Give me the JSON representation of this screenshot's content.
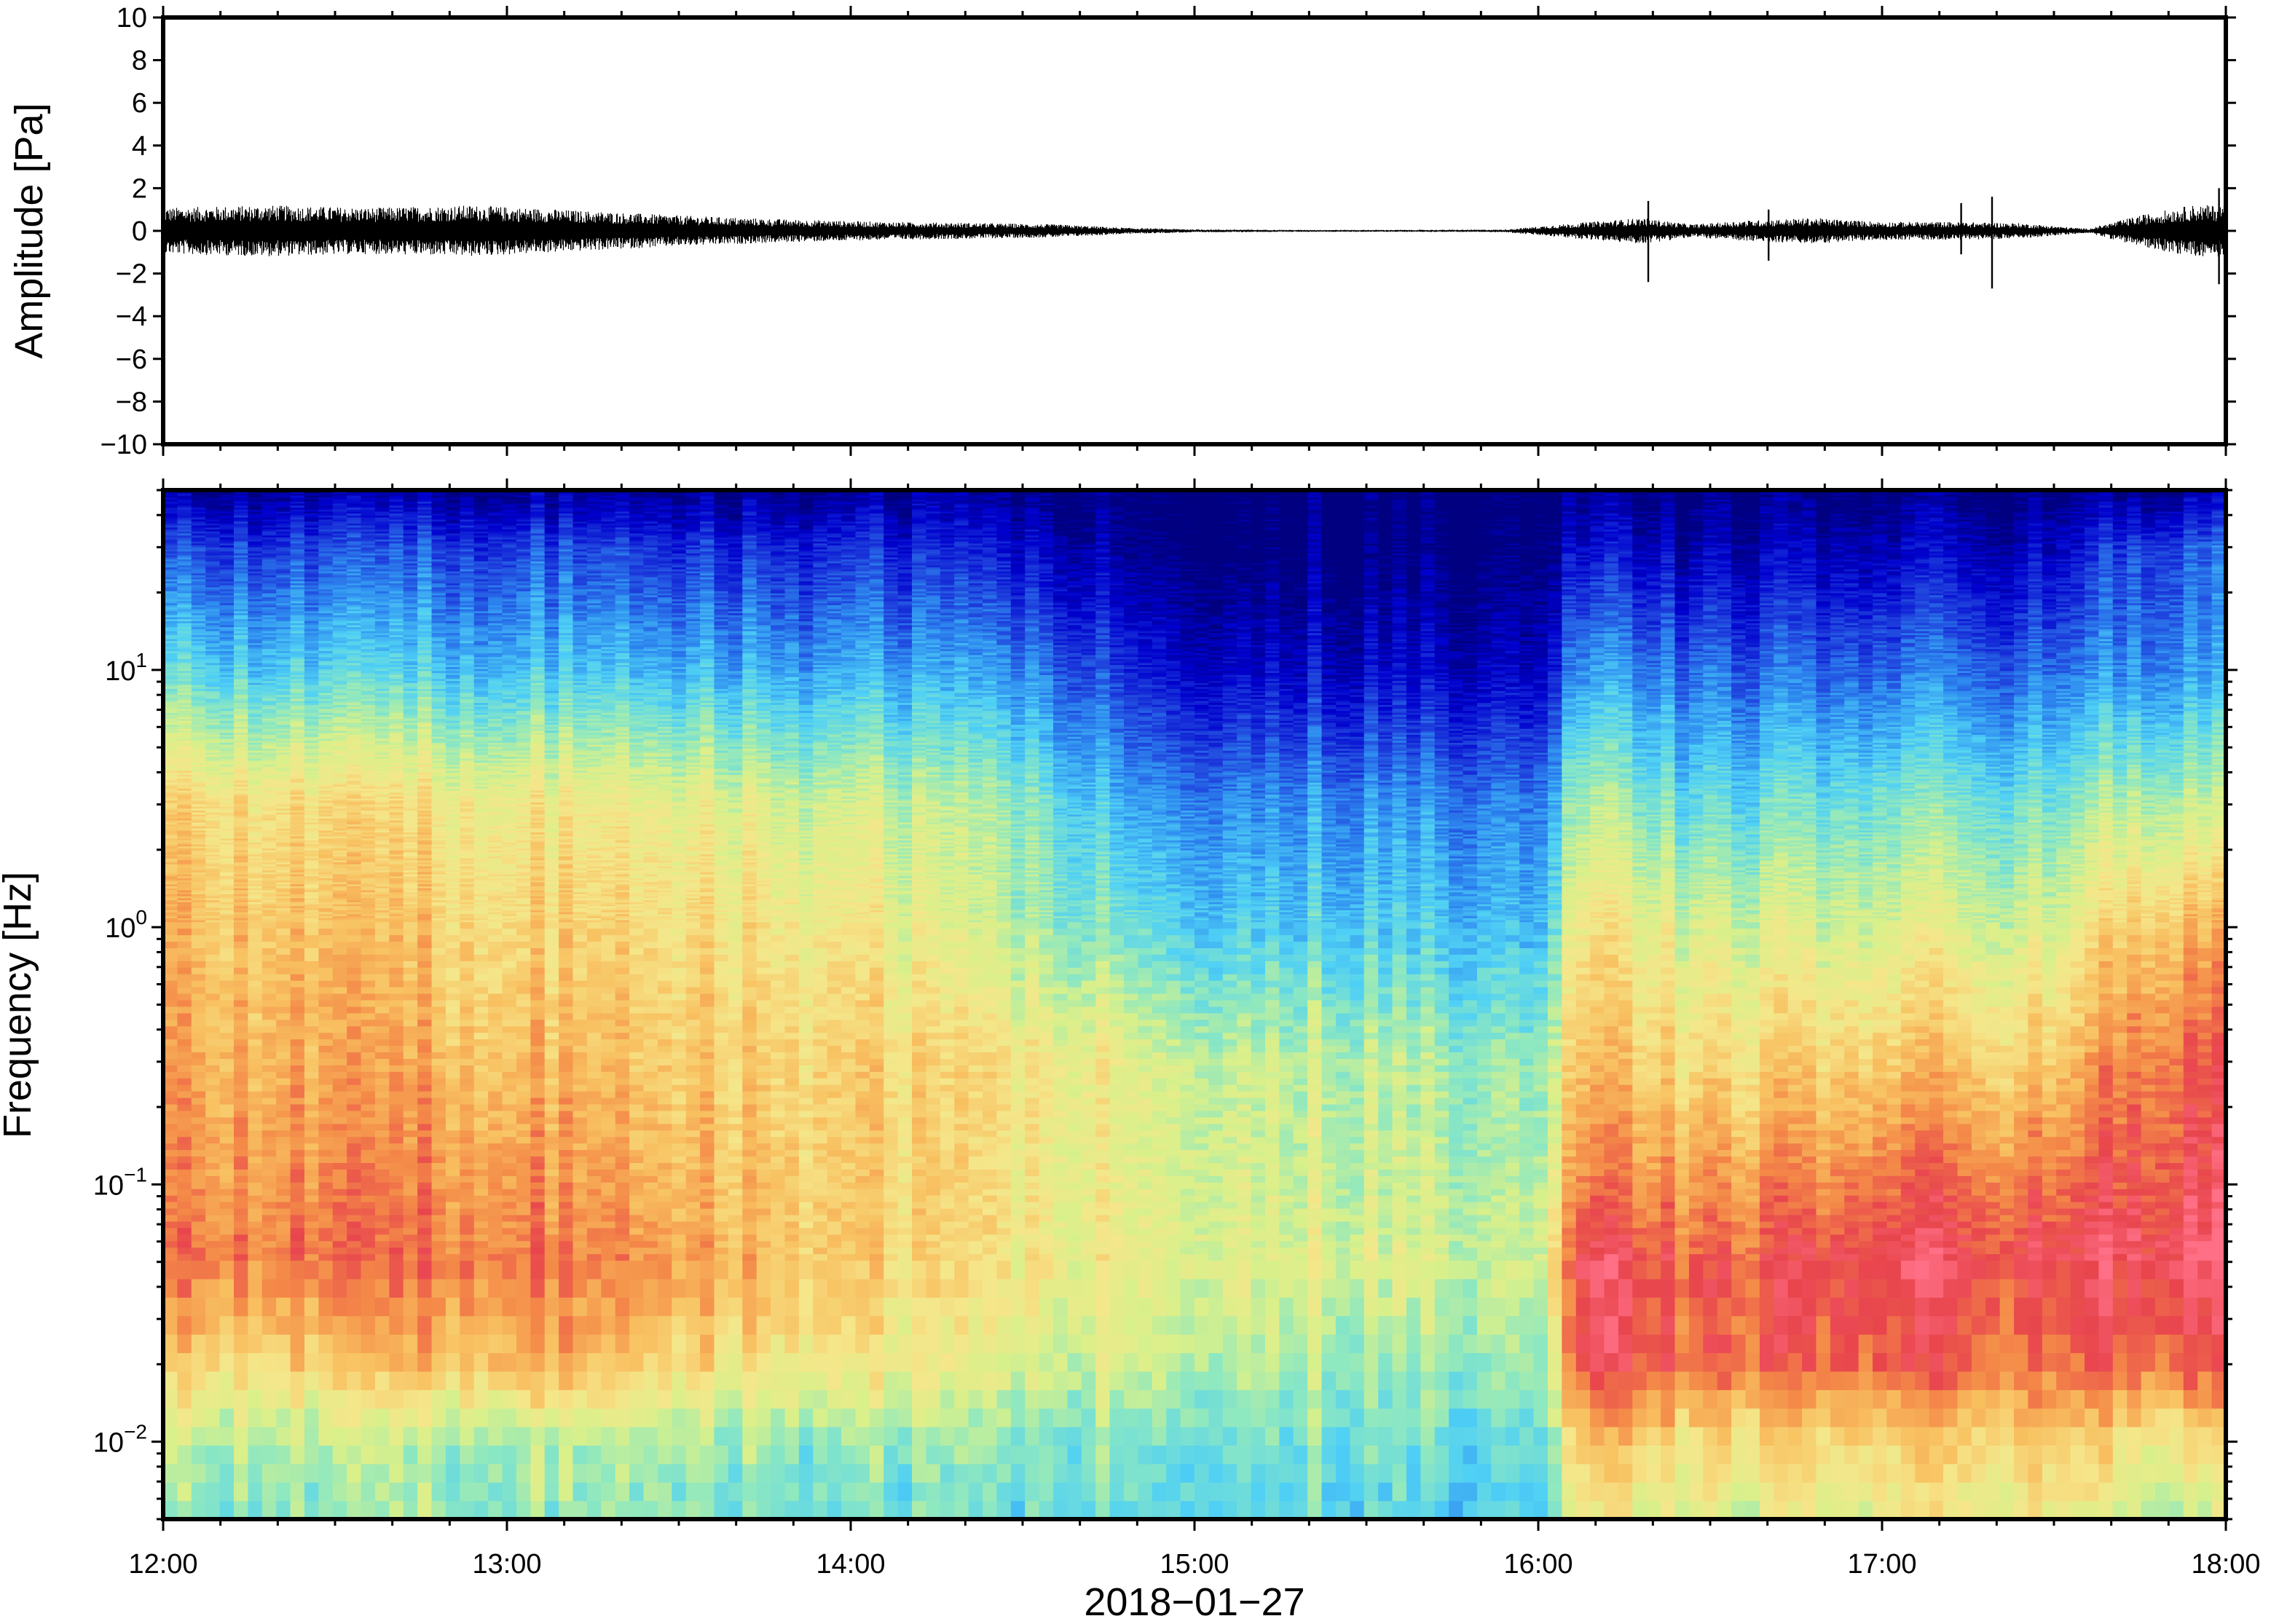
{
  "chart_data": [
    {
      "type": "line",
      "name": "waveform",
      "ylabel": "Amplitude [Pa]",
      "ylim": [
        -10,
        10
      ],
      "yticks": [
        10,
        8,
        6,
        4,
        2,
        0,
        -2,
        -4,
        -6,
        -8,
        -10
      ],
      "ytick_labels": [
        "10",
        "8",
        "6",
        "4",
        "2",
        "0",
        "−2",
        "−4",
        "−6",
        "−8",
        "−10"
      ],
      "xlim_hours": [
        12,
        18
      ],
      "grid": false,
      "envelope": {
        "t": [
          12.0,
          12.3,
          12.6,
          12.9,
          13.2,
          13.5,
          13.8,
          14.1,
          14.4,
          14.6,
          14.8,
          15.0,
          15.3,
          15.6,
          15.9,
          16.15,
          16.3,
          16.45,
          16.6,
          16.8,
          17.0,
          17.2,
          17.4,
          17.6,
          17.75,
          17.9,
          18.0
        ],
        "amp": [
          0.9,
          1.0,
          0.9,
          1.0,
          0.8,
          0.6,
          0.45,
          0.35,
          0.3,
          0.25,
          0.12,
          0.06,
          0.04,
          0.04,
          0.05,
          0.35,
          0.5,
          0.25,
          0.4,
          0.5,
          0.35,
          0.35,
          0.3,
          0.08,
          0.6,
          1.0,
          1.0
        ]
      },
      "spikes": [
        {
          "t": 16.32,
          "min": -2.4,
          "max": 1.4
        },
        {
          "t": 16.67,
          "min": -1.4,
          "max": 1.0
        },
        {
          "t": 17.23,
          "min": -1.1,
          "max": 1.3
        },
        {
          "t": 17.32,
          "min": -2.7,
          "max": 1.6
        },
        {
          "t": 17.98,
          "min": -2.5,
          "max": 2.0
        }
      ]
    },
    {
      "type": "heatmap",
      "name": "spectrogram",
      "ylabel": "Frequency [Hz]",
      "yscale": "log",
      "ylim": [
        0.005,
        50
      ],
      "yticks": [
        0.01,
        0.1,
        1,
        10
      ],
      "ytick_labels": [
        {
          "base": "10",
          "exp": "−2"
        },
        {
          "base": "10",
          "exp": "−1"
        },
        {
          "base": "10",
          "exp": "0"
        },
        {
          "base": "10",
          "exp": "1"
        }
      ],
      "xlabel": "2018−01−27",
      "xticks": [
        "12:00",
        "13:00",
        "14:00",
        "15:00",
        "16:00",
        "17:00",
        "18:00"
      ],
      "xlim_hours": [
        12,
        18
      ],
      "colormap": [
        "#000080",
        "#0000cd",
        "#1e3fdc",
        "#2f8df0",
        "#4fd0f5",
        "#8ee8c0",
        "#d9f08a",
        "#f5e68a",
        "#f8c060",
        "#f48a48",
        "#e8454d",
        "#ff6f85"
      ],
      "color_levels": [
        0,
        1,
        2,
        3,
        4,
        5,
        6,
        7,
        8,
        9,
        10,
        11
      ],
      "time_bins": [
        12.0,
        12.5,
        13.0,
        13.5,
        14.0,
        14.5,
        14.8,
        15.0,
        15.5,
        16.0,
        16.13,
        16.5,
        17.0,
        17.5,
        17.75,
        18.0
      ],
      "profile_frequencies_hz": [
        0.005,
        0.01,
        0.02,
        0.05,
        0.1,
        0.3,
        1,
        3,
        10,
        30,
        50
      ],
      "levels": [
        [
          5.0,
          5.5,
          7.5,
          9.2,
          8.8,
          8.4,
          8.0,
          7.4,
          4.2,
          2.0,
          0.3
        ],
        [
          5.0,
          5.5,
          7.5,
          9.3,
          8.9,
          8.3,
          7.8,
          7.2,
          4.0,
          2.0,
          0.4
        ],
        [
          5.2,
          5.5,
          8.4,
          9.4,
          9.0,
          8.2,
          7.6,
          7.0,
          4.0,
          2.2,
          0.4
        ],
        [
          5.0,
          5.5,
          7.5,
          8.8,
          8.2,
          7.8,
          7.4,
          6.6,
          3.7,
          1.8,
          0.3
        ],
        [
          4.5,
          5.0,
          6.8,
          7.5,
          7.6,
          7.5,
          6.8,
          5.9,
          3.4,
          1.6,
          0.2
        ],
        [
          4.5,
          5.0,
          6.2,
          7.0,
          7.0,
          7.1,
          5.5,
          5.2,
          3.1,
          1.2,
          0.2
        ],
        [
          4.5,
          5.0,
          6.0,
          6.7,
          6.5,
          6.5,
          4.8,
          3.5,
          1.8,
          0.3,
          0.0
        ],
        [
          4.5,
          4.8,
          5.8,
          6.5,
          6.4,
          6.0,
          4.2,
          3.2,
          1.2,
          0.1,
          0.0
        ],
        [
          4.5,
          4.8,
          5.5,
          6.3,
          6.0,
          5.8,
          4.2,
          3.3,
          1.2,
          0.1,
          0.0
        ],
        [
          4.0,
          4.5,
          5.3,
          6.0,
          5.6,
          5.2,
          3.8,
          3.0,
          1.0,
          0.1,
          0.0
        ],
        [
          6.5,
          7.8,
          10.0,
          10.4,
          9.2,
          8.0,
          7.0,
          5.5,
          3.2,
          1.1,
          0.1
        ],
        [
          6.0,
          7.2,
          9.4,
          9.5,
          8.6,
          7.2,
          6.0,
          4.3,
          2.5,
          0.6,
          0.0
        ],
        [
          6.5,
          7.5,
          9.6,
          10.4,
          9.4,
          7.8,
          6.2,
          4.8,
          2.6,
          0.8,
          0.0
        ],
        [
          6.5,
          7.5,
          9.2,
          10.0,
          9.2,
          7.6,
          6.0,
          4.6,
          2.5,
          0.7,
          0.0
        ],
        [
          6.0,
          7.0,
          9.6,
          10.6,
          10.0,
          9.4,
          8.0,
          5.8,
          3.2,
          2.2,
          0.3
        ],
        [
          6.0,
          7.0,
          9.6,
          10.8,
          10.2,
          9.6,
          8.2,
          5.6,
          3.2,
          2.4,
          0.4
        ]
      ]
    }
  ]
}
